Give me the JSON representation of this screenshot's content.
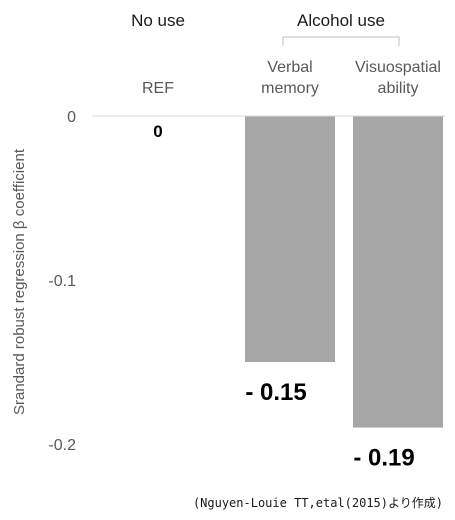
{
  "chart_data": {
    "type": "bar",
    "categories": [
      "REF",
      "Verbal memory",
      "Visuospatial ability"
    ],
    "category_lines": [
      [
        "REF"
      ],
      [
        "Verbal",
        "memory"
      ],
      [
        "Visuospatial",
        "ability"
      ]
    ],
    "values": [
      0,
      -0.15,
      -0.19
    ],
    "value_labels": [
      "0",
      "- 0.15",
      "- 0.19"
    ],
    "group_labels": {
      "no_use": "No use",
      "alcohol_use": "Alcohol use"
    },
    "ylabel": "Srandard robust regression β coefficient",
    "yticks": [
      0,
      -0.1,
      -0.2
    ],
    "ytick_labels": [
      "0",
      "-0.1",
      "-0.2"
    ],
    "ylim": [
      -0.2,
      0
    ],
    "bar_color": "#a6a6a6",
    "grid": false
  },
  "source": "(Nguyen-Louie TT,etal(2015)より作成)"
}
